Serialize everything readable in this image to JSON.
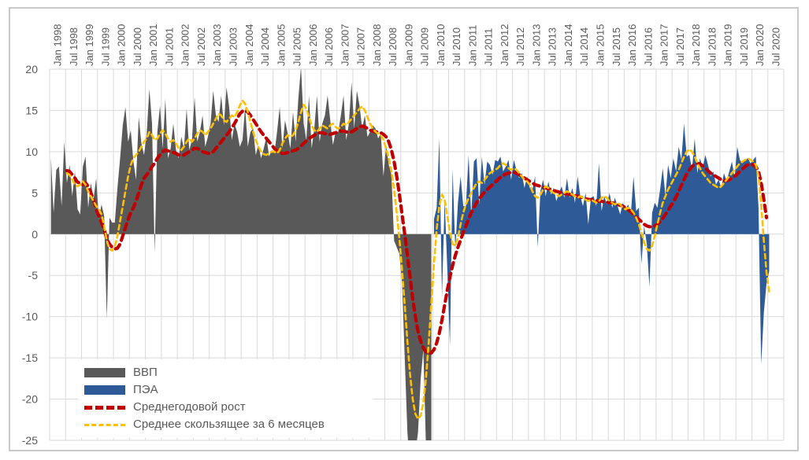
{
  "chart_data": {
    "type": "area",
    "title": "",
    "x_unit": "month",
    "x_axis_position": "top",
    "x_axis_start": "Jan 1998",
    "x_axis_end": "Dec 2020",
    "months_on_axis": 276,
    "grid": true,
    "grid_color": "#d9d9d9",
    "axis_text_color": "#595959",
    "frame_border_color": "#c9c9c9",
    "plot_background": "#ffffff",
    "ylim": [
      -25,
      20
    ],
    "y_tick_labels": [
      "20",
      "15",
      "10",
      "5",
      "0",
      "-5",
      "-10",
      "-15",
      "-20",
      "-25"
    ],
    "y_tick_values": [
      20,
      15,
      10,
      5,
      0,
      -5,
      -10,
      -15,
      -20,
      -25
    ],
    "x_tick_labels": [
      "Jan 1998",
      "Jul 1998",
      "Jan 1999",
      "Jul 1999",
      "Jan 2000",
      "Jul 2000",
      "Jan 2001",
      "Jul 2001",
      "Jan 2002",
      "Jul 2002",
      "Jan 2003",
      "Jul 2003",
      "Jan 2004",
      "Jul 2004",
      "Jan 2005",
      "Jul 2005",
      "Jan 2006",
      "Jul 2006",
      "Jan 2007",
      "Jul 2007",
      "Jan 2008",
      "Jul 2008",
      "Jan 2009",
      "Jul 2009",
      "Jan 2010",
      "Jul 2010",
      "Jan 2011",
      "Jul 2011",
      "Jan 2012",
      "Jul 2012",
      "Jan 2013",
      "Jul 2013",
      "Jan 2014",
      "Jul 2014",
      "Jan 2015",
      "Jul 2015",
      "Jan 2016",
      "Jul 2016",
      "Jan 2017",
      "Jul 2017",
      "Jan 2018",
      "Jul 2018",
      "Jan 2019",
      "Jul 2019",
      "Jan 2020",
      "Jul 2020"
    ],
    "series": [
      {
        "name": "ВВП",
        "type": "area",
        "color": "#595959",
        "start_month_index": 0,
        "start_label": "Jan 1998",
        "end_label": "Dec 2009",
        "values": [
          9.3,
          2.6,
          7.8,
          8.2,
          3.4,
          11.2,
          6.2,
          8.4,
          4.6,
          7.6,
          3.0,
          2.4,
          8.2,
          9.4,
          3.2,
          6.2,
          4.2,
          6.8,
          1.8,
          3.6,
          2.2,
          -10.3,
          2.0,
          1.4,
          1.4,
          5.6,
          9.2,
          13.2,
          15.4,
          11.2,
          12.6,
          8.8,
          6.6,
          14.2,
          11.0,
          9.6,
          12.2,
          17.6,
          13.4,
          -2.3,
          12.4,
          15.6,
          10.4,
          16.4,
          9.2,
          10.4,
          13.4,
          10.2,
          9.2,
          11.8,
          10.4,
          15.2,
          10.2,
          11.4,
          16.6,
          11.2,
          12.4,
          14.4,
          10.6,
          11.8,
          13.4,
          17.4,
          14.4,
          13.6,
          16.8,
          13.2,
          17.8,
          15.4,
          11.4,
          13.4,
          12.4,
          10.6,
          11.4,
          15.4,
          10.6,
          12.4,
          12.8,
          9.6,
          10.8,
          9.2,
          10.4,
          11.8,
          9.4,
          10.2,
          9.8,
          12.4,
          15.4,
          10.4,
          13.8,
          12.2,
          10.4,
          14.8,
          11.2,
          16.4,
          20.3,
          13.4,
          11.4,
          16.8,
          10.4,
          12.8,
          16.8,
          11.2,
          13.4,
          14.4,
          16.8,
          13.8,
          10.8,
          12.4,
          12.4,
          14.4,
          16.8,
          11.4,
          13.4,
          18.4,
          12.8,
          17.4,
          15.6,
          12.8,
          14.4,
          11.8,
          12.4,
          13.2,
          12.8,
          11.6,
          12.2,
          7.0,
          10.8,
          8.4,
          7.2,
          -0.8,
          -1.6,
          -2.4,
          -6.0,
          -15.0,
          -24.0,
          -28.5,
          -28.0,
          -26.5,
          -24.0,
          -17.5,
          -14.0,
          -26.0,
          -28.0,
          -26.0
        ]
      },
      {
        "name": "ПЭА",
        "type": "area",
        "color": "#2e5b97",
        "start_month_index": 144,
        "start_label": "Jan 2010",
        "end_label": "Jul 2020",
        "values": [
          1.8,
          3.2,
          11.6,
          -7.6,
          4.2,
          -4.2,
          -13.5,
          7.9,
          -2.0,
          3.8,
          7.0,
          3.4,
          3.4,
          9.6,
          2.2,
          8.8,
          9.2,
          3.6,
          9.4,
          6.0,
          8.8,
          8.4,
          7.2,
          9.0,
          8.8,
          9.4,
          7.6,
          8.2,
          9.0,
          6.6,
          9.0,
          7.8,
          6.8,
          7.4,
          5.6,
          7.0,
          5.6,
          5.4,
          7.0,
          -1.6,
          5.2,
          6.6,
          4.6,
          6.4,
          4.8,
          5.6,
          4.0,
          5.0,
          5.8,
          4.4,
          6.8,
          4.4,
          5.6,
          3.8,
          7.0,
          4.6,
          3.4,
          5.0,
          1.2,
          4.4,
          4.6,
          3.4,
          8.6,
          2.8,
          4.6,
          3.6,
          5.0,
          3.2,
          4.4,
          3.4,
          2.4,
          3.8,
          3.0,
          3.6,
          2.4,
          7.0,
          2.8,
          3.2,
          -3.6,
          1.0,
          -1.2,
          -6.4,
          2.6,
          3.8,
          3.2,
          5.4,
          8.0,
          4.6,
          8.4,
          6.8,
          9.2,
          7.6,
          10.6,
          9.0,
          13.4,
          9.4,
          9.6,
          7.8,
          11.6,
          7.4,
          9.2,
          8.0,
          9.6,
          8.4,
          7.0,
          7.6,
          6.0,
          6.6,
          5.6,
          7.4,
          6.4,
          7.6,
          8.8,
          6.8,
          10.6,
          9.0,
          8.6,
          9.0,
          9.2,
          8.6,
          9.0,
          9.4,
          3.2,
          -15.8,
          -9.5,
          -6.0,
          -4.5
        ]
      },
      {
        "name": "Среднегодовой рост",
        "type": "dashed-line",
        "color": "#c00000",
        "dash": [
          8,
          6
        ],
        "stroke_width": 4.2,
        "start_month_index": 6,
        "start_label": "Jul 1998",
        "end_label": "Jun 2020",
        "values": [
          7.7,
          7.6,
          7.2,
          6.8,
          6.3,
          6.2,
          6.0,
          6.2,
          5.8,
          5.0,
          4.2,
          3.0,
          2.2,
          1.4,
          0.6,
          -0.6,
          -1.2,
          -1.6,
          -1.8,
          -1.7,
          -1.2,
          -0.2,
          0.8,
          1.8,
          2.6,
          3.2,
          4.0,
          5.0,
          6.0,
          6.8,
          7.2,
          7.6,
          8.2,
          8.6,
          9.2,
          9.6,
          10.0,
          10.2,
          10.1,
          10.0,
          9.9,
          9.8,
          9.6,
          9.5,
          9.6,
          9.8,
          10.0,
          10.2,
          10.4,
          10.4,
          10.2,
          10.0,
          9.9,
          9.8,
          9.8,
          10.0,
          10.4,
          10.8,
          11.2,
          11.6,
          12.0,
          12.4,
          12.9,
          13.4,
          14.0,
          14.6,
          14.9,
          15.0,
          14.8,
          14.4,
          13.9,
          13.4,
          12.9,
          12.4,
          12.0,
          11.6,
          11.2,
          10.8,
          10.4,
          10.1,
          9.9,
          9.8,
          9.8,
          9.9,
          10.0,
          10.1,
          10.2,
          10.4,
          10.7,
          11.0,
          11.3,
          11.6,
          11.8,
          12.0,
          12.2,
          12.3,
          12.3,
          12.2,
          12.1,
          12.1,
          12.2,
          12.3,
          12.4,
          12.5,
          12.5,
          12.4,
          12.3,
          12.4,
          12.6,
          12.8,
          13.0,
          13.1,
          13.0,
          12.8,
          12.6,
          12.5,
          12.4,
          12.4,
          12.3,
          12.1,
          11.8,
          11.2,
          10.2,
          8.8,
          7.0,
          4.8,
          2.4,
          0.0,
          -2.6,
          -5.2,
          -7.8,
          -10.0,
          -11.8,
          -13.0,
          -13.8,
          -14.3,
          -14.5,
          -14.4,
          -14.0,
          -13.2,
          -12.0,
          -10.4,
          -8.6,
          -6.8,
          -5.2,
          -3.8,
          -2.6,
          -1.6,
          -0.7,
          0.2,
          1.0,
          1.8,
          2.6,
          3.2,
          3.8,
          4.3,
          4.7,
          5.1,
          5.4,
          5.7,
          6.0,
          6.3,
          6.6,
          6.9,
          7.1,
          7.3,
          7.4,
          7.5,
          7.5,
          7.4,
          7.2,
          7.0,
          6.8,
          6.6,
          6.4,
          6.2,
          6.0,
          5.9,
          5.8,
          5.7,
          5.6,
          5.5,
          5.4,
          5.3,
          5.2,
          5.1,
          5.0,
          4.9,
          4.9,
          4.8,
          4.8,
          4.7,
          4.6,
          4.5,
          4.4,
          4.3,
          4.2,
          4.2,
          4.1,
          4.1,
          4.0,
          4.0,
          3.9,
          3.9,
          3.8,
          3.8,
          3.7,
          3.6,
          3.5,
          3.4,
          3.2,
          3.0,
          2.7,
          2.4,
          2.1,
          1.8,
          1.5,
          1.2,
          1.0,
          0.9,
          0.9,
          1.0,
          1.2,
          1.5,
          1.9,
          2.4,
          2.9,
          3.4,
          3.9,
          4.5,
          5.2,
          5.9,
          6.6,
          7.3,
          7.8,
          8.2,
          8.5,
          8.6,
          8.5,
          8.3,
          8.0,
          7.7,
          7.4,
          7.2,
          7.0,
          6.8,
          6.6,
          6.5,
          6.5,
          6.6,
          6.8,
          7.0,
          7.3,
          7.6,
          7.9,
          8.2,
          8.4,
          8.5,
          8.4,
          8.2,
          7.6,
          6.2,
          4.2,
          2.0
        ]
      },
      {
        "name": "Среднее скользящее за 6 месяцев",
        "type": "dashed-line",
        "color": "#ffc000",
        "dash": [
          6,
          4.5
        ],
        "stroke_width": 2.6,
        "start_month_index": 6,
        "start_label": "Jul 1998",
        "end_label": "Jul 2020",
        "values": [
          7.4,
          7.2,
          6.6,
          6.0,
          5.8,
          6.0,
          6.4,
          6.0,
          5.2,
          4.6,
          4.0,
          3.4,
          3.0,
          2.4,
          1.0,
          -0.8,
          -1.8,
          -2.0,
          -1.5,
          -0.2,
          1.6,
          3.4,
          5.2,
          7.0,
          8.4,
          9.2,
          9.6,
          10.0,
          10.6,
          11.2,
          11.6,
          12.4,
          12.0,
          11.4,
          11.6,
          12.2,
          12.6,
          12.2,
          11.6,
          11.2,
          11.4,
          11.0,
          10.4,
          10.2,
          10.6,
          11.2,
          11.6,
          11.2,
          11.6,
          12.2,
          12.6,
          12.4,
          12.0,
          12.4,
          12.8,
          13.4,
          14.0,
          14.6,
          14.4,
          13.8,
          13.6,
          14.0,
          14.4,
          14.2,
          14.8,
          15.6,
          16.2,
          15.8,
          14.8,
          13.6,
          12.4,
          11.4,
          10.6,
          10.0,
          9.7,
          9.6,
          9.8,
          10.0,
          10.0,
          9.8,
          10.2,
          11.0,
          11.6,
          12.0,
          11.8,
          12.0,
          12.6,
          13.6,
          14.8,
          15.7,
          15.2,
          14.2,
          13.2,
          12.6,
          12.4,
          12.8,
          13.2,
          13.0,
          12.8,
          13.2,
          13.4,
          13.0,
          12.8,
          13.0,
          13.4,
          13.2,
          13.6,
          14.0,
          14.4,
          14.8,
          15.2,
          15.5,
          15.0,
          14.2,
          13.4,
          12.8,
          12.4,
          12.2,
          12.0,
          11.4,
          10.4,
          9.2,
          7.6,
          5.4,
          2.6,
          -0.6,
          -4.4,
          -8.6,
          -13.0,
          -17.0,
          -20.0,
          -21.8,
          -22.4,
          -22.0,
          -20.4,
          -17.4,
          -13.2,
          -8.4,
          -3.6,
          0.6,
          3.4,
          4.8,
          4.2,
          2.2,
          0.2,
          -1.2,
          -1.4,
          -0.4,
          1.2,
          2.6,
          3.6,
          4.4,
          5.0,
          5.6,
          6.2,
          6.4,
          6.2,
          6.6,
          7.0,
          7.4,
          7.6,
          7.8,
          8.0,
          8.4,
          8.6,
          8.4,
          8.0,
          7.8,
          8.0,
          7.8,
          7.4,
          7.0,
          6.6,
          6.4,
          6.0,
          5.2,
          4.6,
          4.4,
          4.8,
          5.4,
          5.8,
          5.6,
          5.2,
          5.0,
          4.8,
          4.6,
          4.8,
          5.0,
          5.2,
          5.0,
          4.8,
          4.6,
          4.4,
          4.6,
          4.4,
          4.2,
          4.0,
          4.2,
          4.0,
          3.8,
          4.0,
          4.4,
          4.6,
          4.4,
          4.0,
          3.8,
          3.6,
          3.8,
          3.6,
          3.2,
          3.0,
          3.2,
          3.0,
          2.6,
          2.0,
          1.2,
          0.2,
          -1.0,
          -1.8,
          -2.0,
          -1.4,
          -0.2,
          1.2,
          2.6,
          3.8,
          4.6,
          5.4,
          6.0,
          6.6,
          7.2,
          7.8,
          8.6,
          9.4,
          10.0,
          10.3,
          10.0,
          9.4,
          8.6,
          8.0,
          7.4,
          7.0,
          6.6,
          6.2,
          6.0,
          5.8,
          5.6,
          5.8,
          6.2,
          6.6,
          7.0,
          7.4,
          7.8,
          8.2,
          8.6,
          8.8,
          9.0,
          9.2,
          9.0,
          8.8,
          8.4,
          7.0,
          3.6,
          -0.8,
          -4.6,
          -7.0
        ]
      }
    ],
    "legend": {
      "position": "inside-bottom-left",
      "background": "#ffffff"
    }
  }
}
